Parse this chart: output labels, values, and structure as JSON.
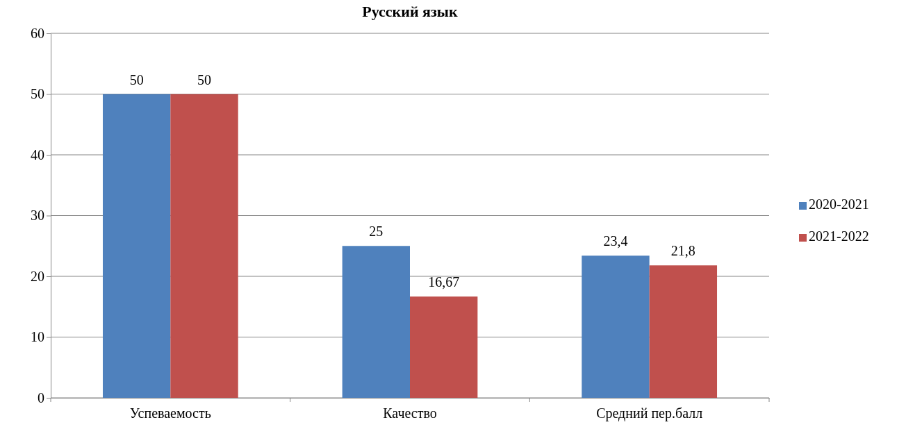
{
  "chart_data": {
    "type": "bar",
    "title": "Русский язык",
    "categories": [
      "Успеваемость",
      "Качество",
      "Средний пер.балл"
    ],
    "series": [
      {
        "name": "2020-2021",
        "color": "#4f81bd",
        "values": [
          50,
          25,
          23.4
        ],
        "value_labels": [
          "50",
          "25",
          "23,4"
        ]
      },
      {
        "name": "2021-2022",
        "color": "#c0504d",
        "values": [
          50,
          16.67,
          21.8
        ],
        "value_labels": [
          "50",
          "16,67",
          "21,8"
        ]
      }
    ],
    "ylim": [
      0,
      60
    ],
    "yticks": [
      0,
      10,
      20,
      30,
      40,
      50,
      60
    ],
    "grid": "y",
    "legend": "right"
  }
}
